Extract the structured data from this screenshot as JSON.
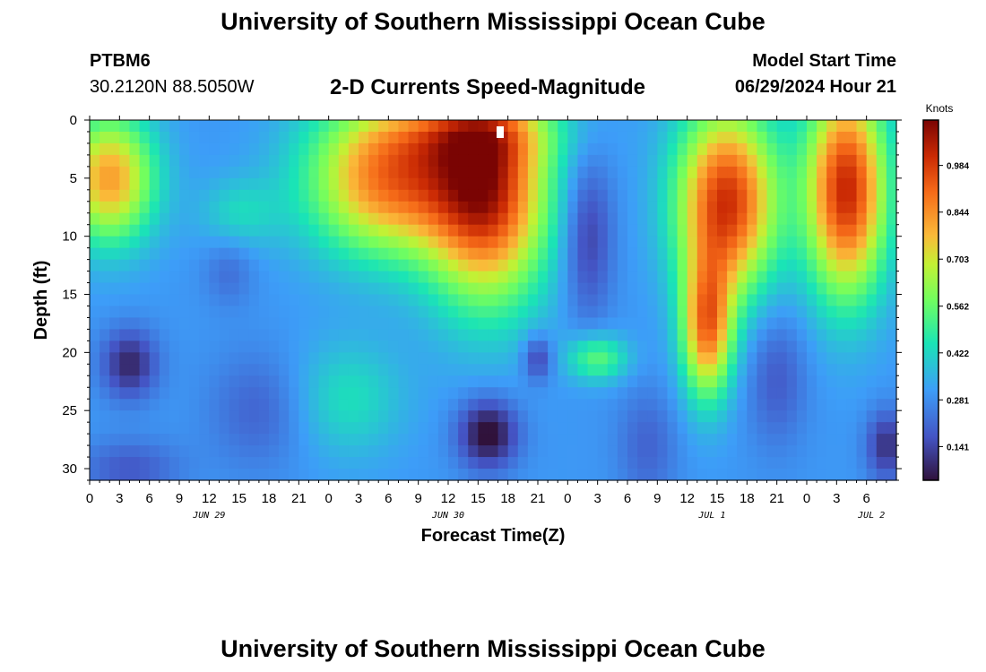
{
  "header": {
    "title": "University of Southern Mississippi Ocean Cube",
    "station": "PTBM6",
    "coords": "30.2120N  88.5050W",
    "subtitle": "2-D Currents Speed-Magnitude",
    "model_start_label": "Model Start Time",
    "model_start_value": "06/29/2024 Hour 21"
  },
  "footer": {
    "title": "University of Southern Mississippi Ocean Cube"
  },
  "chart_data": {
    "type": "heatmap",
    "title": "2-D Currents Speed-Magnitude",
    "xlabel": "Forecast Time(Z)",
    "ylabel": "Depth (ft)",
    "colorbar_label": "Knots",
    "colorbar_ticks": [
      "0.141",
      "0.281",
      "0.422",
      "0.562",
      "0.703",
      "0.844",
      "0.984"
    ],
    "colorbar_values": [
      0.141,
      0.281,
      0.422,
      0.562,
      0.703,
      0.844,
      0.984
    ],
    "color_range": [
      0.04,
      1.12
    ],
    "x_ticks": [
      "0",
      "3",
      "6",
      "9",
      "12",
      "15",
      "18",
      "21",
      "0",
      "3",
      "6",
      "9",
      "12",
      "15",
      "18",
      "21",
      "0",
      "3",
      "6",
      "9",
      "12",
      "15",
      "18",
      "21",
      "0",
      "3",
      "6"
    ],
    "x_range_hours": [
      0,
      81
    ],
    "date_labels": [
      {
        "text": "JUN 29",
        "hour": 12
      },
      {
        "text": "JUN 30",
        "hour": 36
      },
      {
        "text": "JUL 1",
        "hour": 62.5
      },
      {
        "text": "JUL 2",
        "hour": 78.5
      }
    ],
    "y_ticks": [
      0,
      5,
      10,
      15,
      20,
      25,
      30
    ],
    "y_range": [
      0,
      31
    ],
    "y_reversed": true,
    "field": {
      "blobs": [
        {
          "x": 2,
          "y": 5,
          "sx": 4.5,
          "sy": 5.5,
          "v": 0.52
        },
        {
          "x": 4,
          "y": 21,
          "sx": 2.8,
          "sy": 3.0,
          "v": -0.22
        },
        {
          "x": 4,
          "y": 30,
          "sx": 5,
          "sy": 2.5,
          "v": -0.12
        },
        {
          "x": 15,
          "y": 8,
          "sx": 4,
          "sy": 3,
          "v": 0.12
        },
        {
          "x": 14,
          "y": 13,
          "sx": 2.5,
          "sy": 3,
          "v": -0.08
        },
        {
          "x": 17,
          "y": 25,
          "sx": 5,
          "sy": 5,
          "v": -0.1
        },
        {
          "x": 26,
          "y": 24,
          "sx": 5.5,
          "sy": 5,
          "v": 0.14
        },
        {
          "x": 30,
          "y": 5,
          "sx": 8,
          "sy": 6.5,
          "v": 0.58
        },
        {
          "x": 40,
          "y": 6,
          "sx": 6,
          "sy": 9.5,
          "v": 0.7
        },
        {
          "x": 38,
          "y": 1,
          "sx": 9,
          "sy": 3,
          "v": 0.2
        },
        {
          "x": 40,
          "y": 27,
          "sx": 3,
          "sy": 3,
          "v": -0.28
        },
        {
          "x": 45,
          "y": 20.5,
          "sx": 1.5,
          "sy": 2,
          "v": -0.18
        },
        {
          "x": 50,
          "y": 10,
          "sx": 2.5,
          "sy": 7,
          "v": -0.18
        },
        {
          "x": 51,
          "y": 20.5,
          "sx": 3,
          "sy": 2,
          "v": 0.25
        },
        {
          "x": 56,
          "y": 28,
          "sx": 3,
          "sy": 5,
          "v": -0.1
        },
        {
          "x": 64,
          "y": 7,
          "sx": 5,
          "sy": 8,
          "v": 0.7
        },
        {
          "x": 62,
          "y": 18,
          "sx": 2.5,
          "sy": 6,
          "v": 0.55
        },
        {
          "x": 69,
          "y": 22,
          "sx": 3,
          "sy": 6,
          "v": -0.12
        },
        {
          "x": 76,
          "y": 6,
          "sx": 4,
          "sy": 9,
          "v": 0.72
        },
        {
          "x": 80,
          "y": 28,
          "sx": 2,
          "sy": 3,
          "v": -0.2
        }
      ]
    }
  }
}
